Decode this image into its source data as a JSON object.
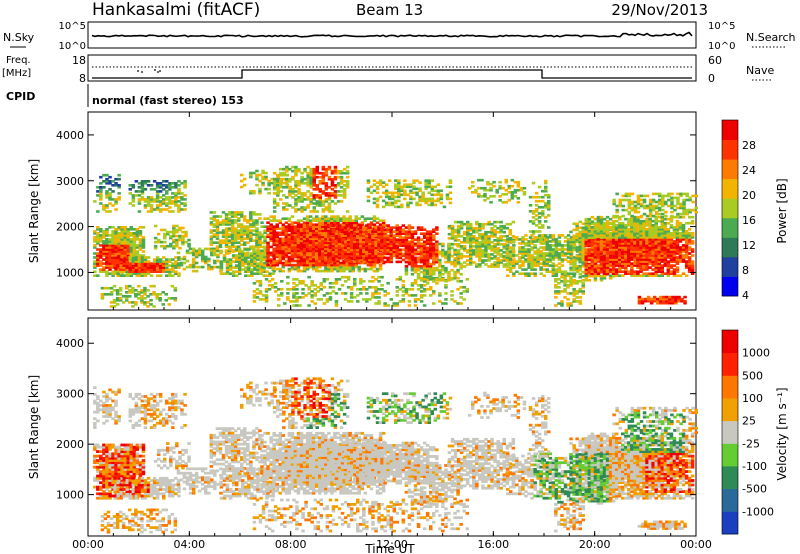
{
  "header": {
    "station": "Hankasalmi (fitACF)",
    "beam": "Beam 13",
    "date": "29/Nov/2013"
  },
  "strips": {
    "nsky_label": "N.Sky",
    "nsky_ticks": [
      "10^5",
      "10^0"
    ],
    "nsearch_label": "N.Search",
    "freq_label_1": "Freq.",
    "freq_label_2": "[MHz]",
    "freq_ticks": [
      "18",
      "8"
    ],
    "nave_label": "Nave",
    "nave_ticks": [
      "60",
      "0"
    ],
    "cpid_label": "CPID",
    "cpid_text": "normal (fast stereo) 153"
  },
  "colors": {
    "power_scale": [
      "#0000ee",
      "#2040a0",
      "#2e7a58",
      "#4caa50",
      "#aacc22",
      "#f2b400",
      "#ff7a00",
      "#ff3300",
      "#ee0000"
    ],
    "velocity_scale": [
      "#1a3fbf",
      "#2a6a9a",
      "#2f8a55",
      "#66cc33",
      "#c8c8c0",
      "#f0a000",
      "#ff7700",
      "#ff2200",
      "#ee0000"
    ]
  },
  "chart_data": [
    {
      "type": "heatmap",
      "panel": "power",
      "ylabel": "Slant Range [km]",
      "ylim": [
        180,
        4500
      ],
      "yticks": [
        "4000",
        "3000",
        "2000",
        "1000"
      ],
      "colorbar": {
        "label": "Power [dB]",
        "ticks": [
          "28",
          "24",
          "20",
          "16",
          "12",
          "8",
          "4"
        ]
      }
    },
    {
      "type": "heatmap",
      "panel": "velocity",
      "ylabel": "Slant Range [km]",
      "ylim": [
        180,
        4500
      ],
      "yticks": [
        "4000",
        "3000",
        "2000",
        "1000"
      ],
      "xlabel": "Time UT",
      "xticks": [
        "00:00",
        "04:00",
        "08:00",
        "12:00",
        "16:00",
        "20:00",
        "00:00"
      ],
      "colorbar": {
        "label": "Velocity [m s⁻¹]",
        "ticks": [
          "1000",
          "500",
          "100",
          "25",
          "-25",
          "-100",
          "-500",
          "-1000"
        ]
      }
    }
  ]
}
